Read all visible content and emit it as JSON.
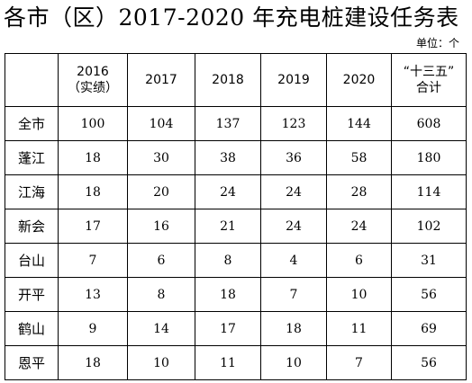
{
  "title": "各市（区）2017-2020 年充电桩建设任务表",
  "unit": "单位：个",
  "table": {
    "headers": [
      {
        "lines": [
          ""
        ]
      },
      {
        "lines": [
          "2016",
          "（实绩）"
        ]
      },
      {
        "lines": [
          "2017"
        ]
      },
      {
        "lines": [
          "2018"
        ]
      },
      {
        "lines": [
          "2019"
        ]
      },
      {
        "lines": [
          "2020"
        ]
      },
      {
        "lines": [
          "“十三五”",
          "合计"
        ]
      }
    ],
    "rows": [
      {
        "region": "全市",
        "values": [
          "100",
          "104",
          "137",
          "123",
          "144",
          "608"
        ]
      },
      {
        "region": "蓬江",
        "values": [
          "18",
          "30",
          "38",
          "36",
          "58",
          "180"
        ]
      },
      {
        "region": "江海",
        "values": [
          "18",
          "20",
          "24",
          "24",
          "28",
          "114"
        ]
      },
      {
        "region": "新会",
        "values": [
          "17",
          "16",
          "21",
          "24",
          "24",
          "102"
        ]
      },
      {
        "region": "台山",
        "values": [
          "7",
          "6",
          "8",
          "4",
          "6",
          "31"
        ]
      },
      {
        "region": "开平",
        "values": [
          "13",
          "8",
          "18",
          "7",
          "10",
          "56"
        ]
      },
      {
        "region": "鹤山",
        "values": [
          "9",
          "14",
          "17",
          "18",
          "11",
          "69"
        ]
      },
      {
        "region": "恩平",
        "values": [
          "18",
          "10",
          "11",
          "10",
          "7",
          "56"
        ]
      }
    ]
  }
}
